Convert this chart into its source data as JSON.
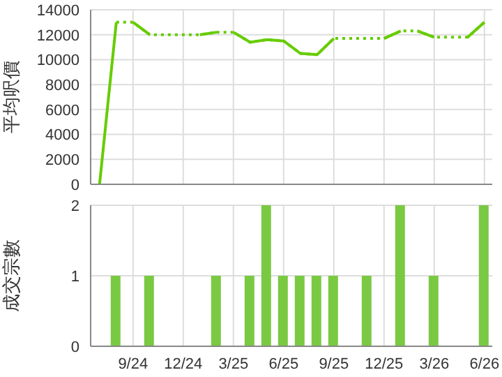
{
  "chart_data": [
    {
      "type": "line",
      "ylabel": "平均呎價",
      "xlim": [
        "2024-06-15",
        "2026-06-15"
      ],
      "xticks": [
        {
          "value": "2024-09",
          "label": null
        },
        {
          "value": "2024-12",
          "label": null
        },
        {
          "value": "2025-03",
          "label": null
        },
        {
          "value": "2025-06",
          "label": null
        },
        {
          "value": "2025-09",
          "label": null
        },
        {
          "value": "2025-12",
          "label": null
        },
        {
          "value": "2026-03",
          "label": null
        },
        {
          "value": "2026-06",
          "label": null
        }
      ],
      "ylim": [
        0,
        14000
      ],
      "yticks": [
        0,
        2000,
        4000,
        6000,
        8000,
        10000,
        12000,
        14000
      ],
      "grid": true,
      "tick_labels": "y",
      "marker": "none",
      "series": [
        {
          "color": "#66cc00",
          "line_style": "dotted",
          "x": [
            "2024-08",
            "2024-09",
            "2024-10",
            "2024-11",
            "2024-12",
            "2025-01",
            "2025-02",
            "2025-03",
            "2025-04",
            "2025-05",
            "2025-06",
            "2025-07",
            "2025-08",
            "2025-09",
            "2025-10",
            "2025-11",
            "2025-12",
            "2026-01",
            "2026-02",
            "2026-03",
            "2026-04",
            "2026-05",
            "2026-06"
          ],
          "values": [
            13000,
            13000,
            12000,
            12000,
            12000,
            12000,
            12200,
            12200,
            11400,
            11600,
            11500,
            10500,
            10400,
            11700,
            11700,
            11700,
            11700,
            12300,
            12300,
            11800,
            11800,
            11800,
            13000
          ]
        },
        {
          "color": "#66cc00",
          "line_style": "solid",
          "x": [
            "2024-07",
            "2024-08"
          ],
          "values": [
            0,
            13000
          ]
        },
        {
          "color": "#66cc00",
          "line_style": "solid",
          "x": [
            "2024-09",
            "2024-10"
          ],
          "values": [
            13000,
            12000
          ]
        },
        {
          "color": "#66cc00",
          "line_style": "solid",
          "x": [
            "2025-01",
            "2025-02"
          ],
          "values": [
            12000,
            12200
          ]
        },
        {
          "color": "#66cc00",
          "line_style": "solid",
          "x": [
            "2025-03",
            "2025-04",
            "2025-05",
            "2025-06",
            "2025-07",
            "2025-08",
            "2025-09"
          ],
          "values": [
            12200,
            11400,
            11600,
            11500,
            10500,
            10400,
            11700
          ]
        },
        {
          "color": "#66cc00",
          "line_style": "solid",
          "x": [
            "2025-12",
            "2026-01"
          ],
          "values": [
            11700,
            12300
          ]
        },
        {
          "color": "#66cc00",
          "line_style": "solid",
          "x": [
            "2026-02",
            "2026-03"
          ],
          "values": [
            12300,
            11800
          ]
        },
        {
          "color": "#66cc00",
          "line_style": "solid",
          "x": [
            "2026-05",
            "2026-06"
          ],
          "values": [
            11800,
            13000
          ]
        }
      ]
    },
    {
      "type": "bar",
      "ylabel": "成交宗數",
      "xlim": [
        "2024-06-15",
        "2026-06-15"
      ],
      "xticks": [
        {
          "value": "2024-09",
          "label": "9/24"
        },
        {
          "value": "2024-12",
          "label": "12/24"
        },
        {
          "value": "2025-03",
          "label": "3/25"
        },
        {
          "value": "2025-06",
          "label": "6/25"
        },
        {
          "value": "2025-09",
          "label": "9/25"
        },
        {
          "value": "2025-12",
          "label": "12/25"
        },
        {
          "value": "2026-03",
          "label": "3/26"
        },
        {
          "value": "2026-06",
          "label": "6/26"
        }
      ],
      "ylim": [
        0,
        2
      ],
      "yticks": [
        0,
        1,
        2
      ],
      "grid": true,
      "x": [
        "2024-08",
        "2024-10",
        "2025-02",
        "2025-04",
        "2025-05",
        "2025-06",
        "2025-07",
        "2025-08",
        "2025-09",
        "2025-11",
        "2026-01",
        "2026-03",
        "2026-06"
      ],
      "values": [
        1,
        1,
        1,
        1,
        2,
        1,
        1,
        1,
        1,
        1,
        2,
        1,
        2
      ],
      "color": "#7ac943"
    }
  ]
}
